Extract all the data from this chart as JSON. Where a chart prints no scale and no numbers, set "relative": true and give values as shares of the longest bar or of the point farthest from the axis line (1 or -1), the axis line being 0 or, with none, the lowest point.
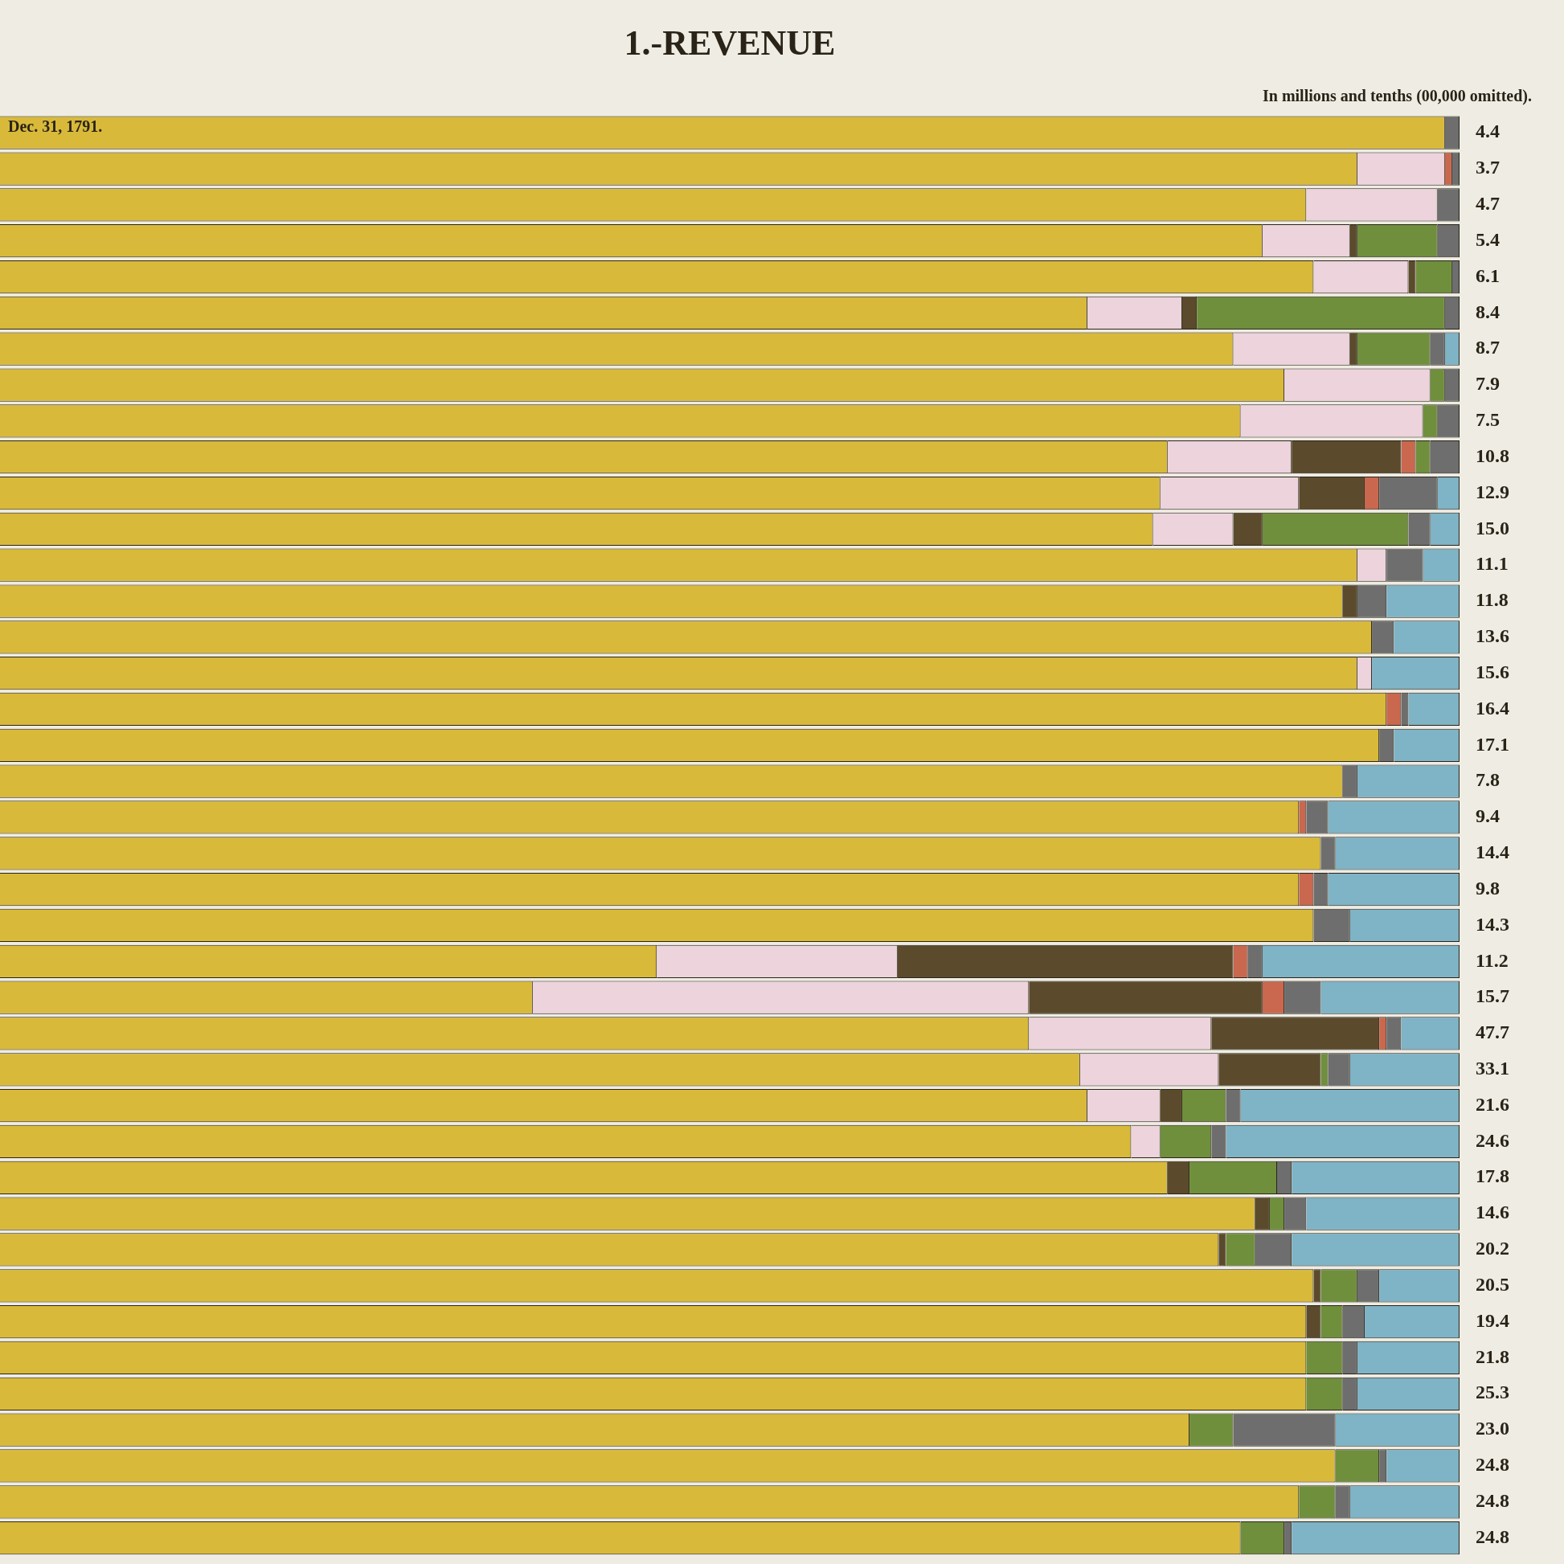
{
  "chart_data": {
    "type": "bar",
    "orientation": "horizontal",
    "stacked": true,
    "relative": true,
    "title": "1.-REVENUE",
    "annotations": [
      "Dec. 31, 1791.",
      "In millions and tenths (00,000 omitted).",
      "4.4",
      "3.7",
      "4.7",
      "5.4",
      "6.1",
      "8.4",
      "8.7",
      "7.9",
      "7.5",
      "10.8",
      "12.9",
      "15.0",
      "11.1",
      "11.8",
      "13.6",
      "15.6",
      "16.4",
      "17.1",
      "7.8",
      "9.4",
      "14.4",
      "9.8",
      "14.3",
      "11.2",
      "15.7",
      "47.7",
      "33.1",
      "21.6",
      "24.6",
      "17.8",
      "14.6",
      "20.2",
      "20.5",
      "19.4",
      "21.8",
      "25.3",
      "23.0",
      "24.8",
      "24.8",
      "24.8"
    ],
    "categories": [
      null,
      null,
      null,
      null,
      null,
      null,
      null,
      null,
      null,
      null,
      null,
      null,
      null,
      null,
      null,
      null,
      null,
      null,
      null,
      null,
      null,
      null,
      null,
      null,
      null,
      null,
      null,
      null,
      null,
      null,
      null,
      null,
      null,
      null,
      null,
      null,
      null,
      null,
      null,
      null
    ],
    "series": [
      {
        "color": "#d9b93a",
        "values": [
          0.99,
          0.93,
          0.895,
          0.865,
          0.9,
          0.745,
          0.845,
          0.88,
          0.85,
          0.8,
          0.795,
          0.79,
          0.93,
          0.92,
          0.94,
          0.93,
          0.95,
          0.945,
          0.92,
          0.89,
          0.905,
          0.89,
          0.9,
          0.45,
          0.365,
          0.705,
          0.74,
          0.745,
          0.775,
          0.8,
          0.86,
          0.835,
          0.9,
          0.895,
          0.895,
          0.895,
          0.815,
          0.915,
          0.89,
          0.85
        ]
      },
      {
        "color": "#ecd3dc",
        "values": [
          null,
          0.06,
          0.09,
          0.06,
          0.065,
          0.065,
          0.08,
          0.1,
          0.125,
          0.085,
          0.095,
          0.055,
          0.02,
          null,
          null,
          0.01,
          null,
          null,
          null,
          null,
          null,
          null,
          null,
          0.165,
          0.34,
          0.125,
          0.095,
          0.05,
          0.02,
          null,
          null,
          null,
          null,
          null,
          null,
          null,
          null,
          null,
          null,
          null
        ]
      },
      {
        "color": "#5b4a2c",
        "values": [
          null,
          null,
          null,
          0.005,
          0.005,
          0.01,
          0.005,
          null,
          null,
          0.075,
          0.045,
          0.02,
          null,
          0.01,
          null,
          null,
          null,
          null,
          null,
          null,
          null,
          null,
          null,
          0.23,
          0.16,
          0.115,
          0.07,
          0.015,
          null,
          0.015,
          0.01,
          0.005,
          0.005,
          0.01,
          null,
          null,
          null,
          null,
          null,
          null
        ]
      },
      {
        "color": "#c9684e",
        "values": [
          null,
          0.005,
          null,
          null,
          null,
          null,
          null,
          null,
          null,
          0.01,
          0.01,
          null,
          null,
          null,
          null,
          null,
          0.01,
          null,
          null,
          0.005,
          null,
          0.01,
          null,
          0.01,
          0.015,
          0.005,
          null,
          null,
          null,
          null,
          null,
          null,
          null,
          null,
          null,
          null,
          null,
          null,
          null,
          null
        ]
      },
      {
        "color": "#6f8f3c",
        "values": [
          null,
          null,
          null,
          0.055,
          0.025,
          0.17,
          0.05,
          0.01,
          0.01,
          0.01,
          null,
          0.1,
          null,
          null,
          null,
          null,
          null,
          null,
          null,
          null,
          null,
          null,
          null,
          null,
          null,
          null,
          0.005,
          0.03,
          0.035,
          0.06,
          0.01,
          0.02,
          0.025,
          0.015,
          0.025,
          0.025,
          0.03,
          0.03,
          0.025,
          0.03
        ]
      },
      {
        "color": "#6e6e6e",
        "values": [
          0.01,
          0.005,
          0.015,
          0.015,
          0.005,
          0.01,
          0.01,
          0.01,
          0.015,
          0.02,
          0.04,
          0.015,
          0.025,
          0.02,
          0.015,
          null,
          0.005,
          0.01,
          0.01,
          0.015,
          0.01,
          0.01,
          0.025,
          0.01,
          0.025,
          0.01,
          0.015,
          0.01,
          0.01,
          0.01,
          0.015,
          0.025,
          0.015,
          0.015,
          0.01,
          0.01,
          0.07,
          0.005,
          0.01,
          0.005
        ]
      },
      {
        "color": "#7fb3c6",
        "values": [
          null,
          null,
          null,
          null,
          null,
          null,
          0.01,
          null,
          null,
          null,
          0.015,
          0.02,
          0.025,
          0.05,
          0.045,
          0.06,
          0.035,
          0.045,
          0.07,
          0.09,
          0.085,
          0.09,
          0.075,
          0.135,
          0.095,
          0.04,
          0.075,
          0.15,
          0.16,
          0.115,
          0.105,
          0.115,
          0.055,
          0.065,
          0.07,
          0.07,
          0.085,
          0.05,
          0.075,
          0.115
        ]
      }
    ]
  }
}
